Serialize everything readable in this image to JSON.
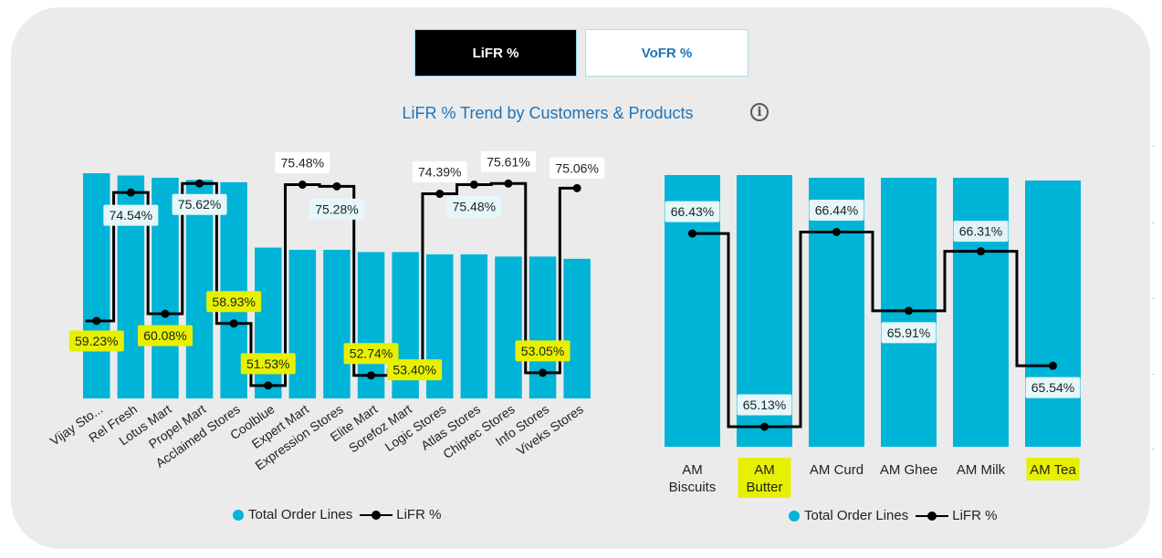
{
  "tabs": [
    {
      "label": "LiFR %",
      "active": true
    },
    {
      "label": "VoFR %",
      "active": false
    }
  ],
  "title": "LiFR % Trend by Customers & Products",
  "info_icon": "info-icon",
  "colors": {
    "bar": "#00b4d8",
    "line": "#000000",
    "highlight": "#e6f000",
    "label_bg": "#e6f7fb"
  },
  "chart_data": [
    {
      "type": "bar",
      "name": "customers",
      "categories": [
        "Vijay Sto...",
        "Rel Fresh",
        "Lotus Mart",
        "Propel Mart",
        "Acclaimed Stores",
        "Coolblue",
        "Expert Mart",
        "Expression Stores",
        "Elite Mart",
        "Sorefoz Mart",
        "Logic Stores",
        "Atlas Stores",
        "Chiptec Stores",
        "Info Stores",
        "Viveks Stores"
      ],
      "series": [
        {
          "name": "Total Order Lines",
          "type": "bar",
          "values": [
            100,
            99,
            98,
            97,
            96,
            67,
            66,
            66,
            65,
            65,
            64,
            64,
            63,
            63,
            62
          ]
        },
        {
          "name": "LiFR %",
          "type": "line",
          "values": [
            59.23,
            74.54,
            60.08,
            75.62,
            58.93,
            51.53,
            75.48,
            75.28,
            52.74,
            53.4,
            74.39,
            75.48,
            75.61,
            53.05,
            75.06
          ]
        }
      ],
      "data_labels": [
        "59.23%",
        "74.54%",
        "60.08%",
        "75.62%",
        "58.93%",
        "51.53%",
        "75.48%",
        "75.28%",
        "52.74%",
        "53.40%",
        "74.39%",
        "75.48%",
        "75.61%",
        "53.05%",
        "75.06%"
      ],
      "highlighted": [
        0,
        2,
        4,
        5,
        8,
        9,
        13
      ],
      "legend": [
        "Total Order Lines",
        "LiFR %"
      ],
      "legend_position": "bottom-center"
    },
    {
      "type": "bar",
      "name": "products",
      "categories": [
        "AM Biscuits",
        "AM Butter",
        "AM Curd",
        "AM Ghee",
        "AM Milk",
        "AM Tea"
      ],
      "series": [
        {
          "name": "Total Order Lines",
          "type": "bar",
          "values": [
            100,
            100,
            99,
            99,
            99,
            98
          ]
        },
        {
          "name": "LiFR %",
          "type": "line",
          "values": [
            66.43,
            65.13,
            66.44,
            65.91,
            66.31,
            65.54
          ]
        }
      ],
      "data_labels": [
        "66.43%",
        "65.13%",
        "66.44%",
        "65.91%",
        "66.31%",
        "65.54%"
      ],
      "highlighted_categories": [
        1,
        5
      ],
      "legend": [
        "Total Order Lines",
        "LiFR %"
      ],
      "legend_position": "bottom-center"
    }
  ]
}
